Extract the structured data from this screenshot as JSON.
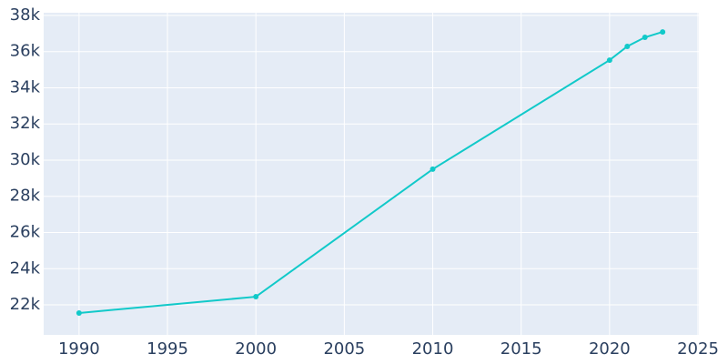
{
  "chart_data": {
    "type": "line",
    "x": [
      1990,
      2000,
      2010,
      2020,
      2021,
      2022,
      2023
    ],
    "series": [
      {
        "color": "#11c9c9",
        "values": [
          21550,
          22450,
          29500,
          35530,
          36290,
          36790,
          37090
        ]
      }
    ],
    "xlim": [
      1988,
      2025.05
    ],
    "xticks": [
      1990,
      1995,
      2000,
      2005,
      2010,
      2015,
      2020,
      2025
    ],
    "ylim": [
      20340,
      38150
    ],
    "yticks": [
      {
        "value": 22000,
        "label": "22k"
      },
      {
        "value": 24000,
        "label": "24k"
      },
      {
        "value": 26000,
        "label": "26k"
      },
      {
        "value": 28000,
        "label": "28k"
      },
      {
        "value": 30000,
        "label": "30k"
      },
      {
        "value": 32000,
        "label": "32k"
      },
      {
        "value": 34000,
        "label": "34k"
      },
      {
        "value": 36000,
        "label": "36k"
      },
      {
        "value": 38000,
        "label": "38k"
      }
    ],
    "grid": true
  }
}
